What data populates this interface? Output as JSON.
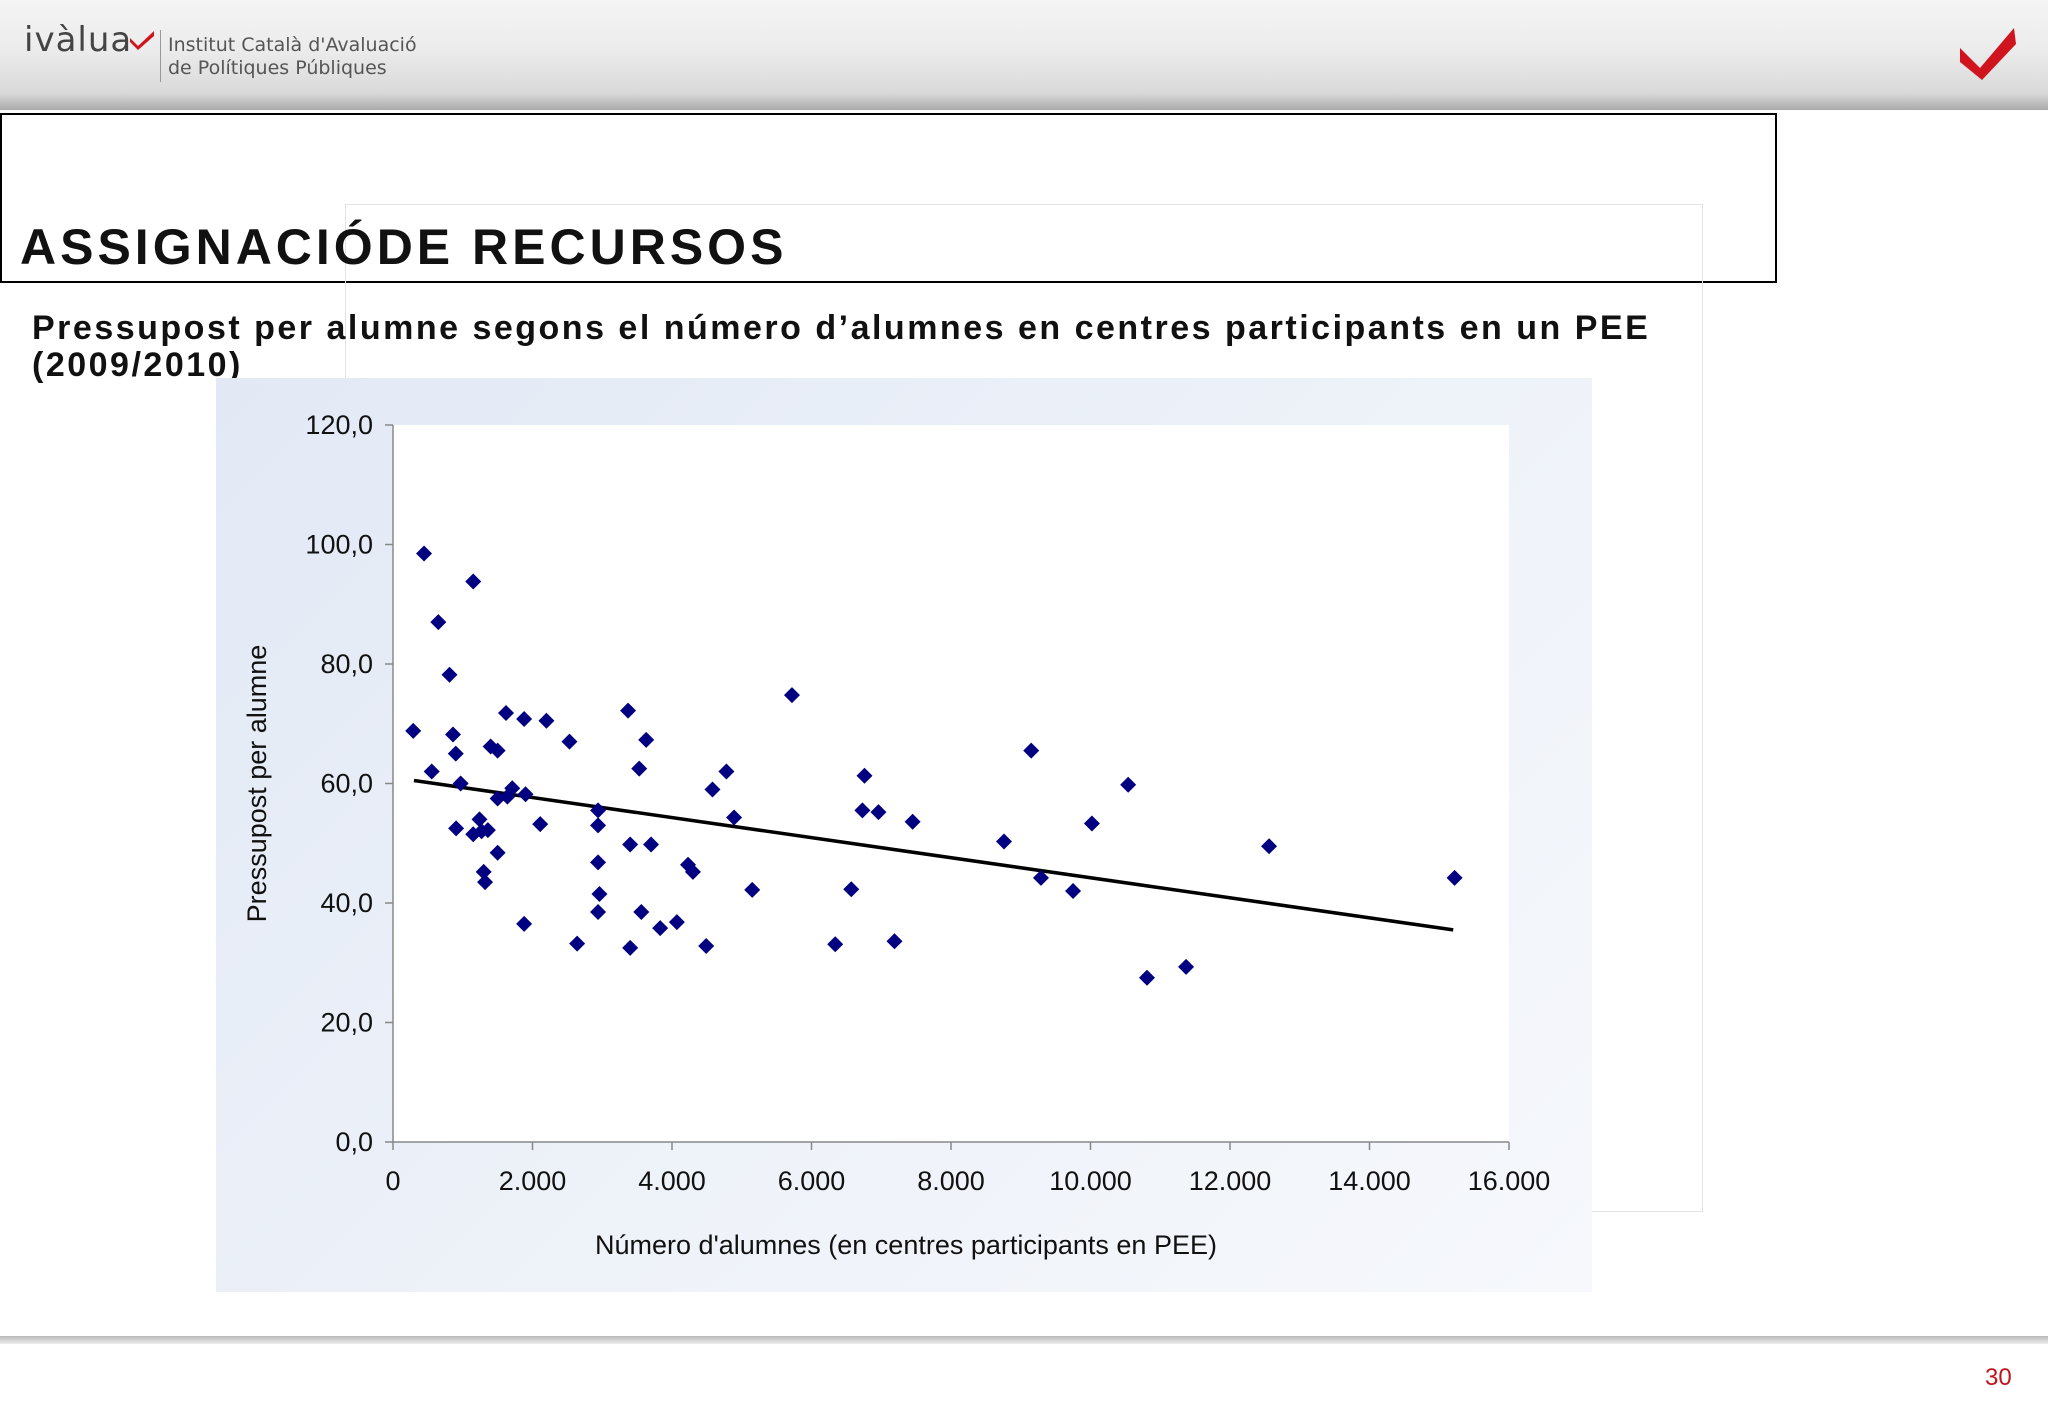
{
  "header": {
    "logo_text": "ivàlua",
    "institute_line1": "Institut Català d'Avaluació",
    "institute_line2": "de Polítiques Públiques",
    "brand_color": "#d0141e"
  },
  "slide": {
    "title": "ASSIGNACIÓDE RECURSOS",
    "subtitle": "Pressupost per alumne segons el número d’alumnes en centres participants en un PEE (2009/2010)",
    "page_number": "30"
  },
  "chart_data": {
    "type": "scatter",
    "xlabel": "Número d'alumnes (en centres participants en PEE)",
    "ylabel": "Pressupost per alumne",
    "xlim": [
      0,
      16000
    ],
    "ylim": [
      0,
      120
    ],
    "x_ticks": [
      0,
      2000,
      4000,
      6000,
      8000,
      10000,
      12000,
      14000,
      16000
    ],
    "x_tick_labels": [
      "0",
      "2.000",
      "4.000",
      "6.000",
      "8.000",
      "10.000",
      "12.000",
      "14.000",
      "16.000"
    ],
    "y_ticks": [
      0,
      20,
      40,
      60,
      80,
      100,
      120
    ],
    "y_tick_labels": [
      "0,0",
      "20,0",
      "40,0",
      "60,0",
      "80,0",
      "100,0",
      "120,0"
    ],
    "marker_color": "#000080",
    "trendline_color": "#000000",
    "grid": false,
    "series": [
      {
        "points": [
          [
            290,
            68.8
          ],
          [
            445,
            98.5
          ],
          [
            555,
            62
          ],
          [
            650,
            87
          ],
          [
            810,
            78.2
          ],
          [
            860,
            68.2
          ],
          [
            900,
            65
          ],
          [
            905,
            52.5
          ],
          [
            970,
            60
          ],
          [
            1150,
            51.5
          ],
          [
            1150,
            93.8
          ],
          [
            1240,
            54
          ],
          [
            1270,
            52
          ],
          [
            1300,
            45.2
          ],
          [
            1320,
            43.5
          ],
          [
            1360,
            52.2
          ],
          [
            1400,
            66.2
          ],
          [
            1500,
            65.5
          ],
          [
            1500,
            48.4
          ],
          [
            1500,
            57.5
          ],
          [
            1620,
            71.8
          ],
          [
            1640,
            57.8
          ],
          [
            1710,
            59.2
          ],
          [
            1880,
            36.5
          ],
          [
            1900,
            58.2
          ],
          [
            1880,
            70.8
          ],
          [
            2110,
            53.2
          ],
          [
            2200,
            70.5
          ],
          [
            2530,
            67
          ],
          [
            2640,
            33.2
          ],
          [
            2940,
            55.5
          ],
          [
            2940,
            53
          ],
          [
            2940,
            46.8
          ],
          [
            2940,
            38.5
          ],
          [
            2960,
            41.5
          ],
          [
            3370,
            72.2
          ],
          [
            3400,
            32.5
          ],
          [
            3400,
            49.8
          ],
          [
            3530,
            62.5
          ],
          [
            3560,
            38.5
          ],
          [
            3630,
            67.3
          ],
          [
            3700,
            49.8
          ],
          [
            3830,
            35.8
          ],
          [
            4070,
            36.8
          ],
          [
            4230,
            46.4
          ],
          [
            4300,
            45.2
          ],
          [
            4490,
            32.8
          ],
          [
            4580,
            59
          ],
          [
            4780,
            62
          ],
          [
            4890,
            54.3
          ],
          [
            5150,
            42.2
          ],
          [
            5720,
            74.8
          ],
          [
            6340,
            33.1
          ],
          [
            6570,
            42.3
          ],
          [
            6730,
            55.5
          ],
          [
            6760,
            61.3
          ],
          [
            6960,
            55.2
          ],
          [
            7190,
            33.6
          ],
          [
            7450,
            53.6
          ],
          [
            8760,
            50.3
          ],
          [
            9150,
            65.5
          ],
          [
            9290,
            44.2
          ],
          [
            9750,
            42
          ],
          [
            10020,
            53.3
          ],
          [
            10540,
            59.8
          ],
          [
            10810,
            27.5
          ],
          [
            11370,
            29.3
          ],
          [
            12560,
            49.5
          ],
          [
            15220,
            44.2
          ]
        ]
      }
    ],
    "trendline": {
      "x": [
        300,
        15200
      ],
      "y": [
        60.5,
        35.5
      ]
    }
  }
}
